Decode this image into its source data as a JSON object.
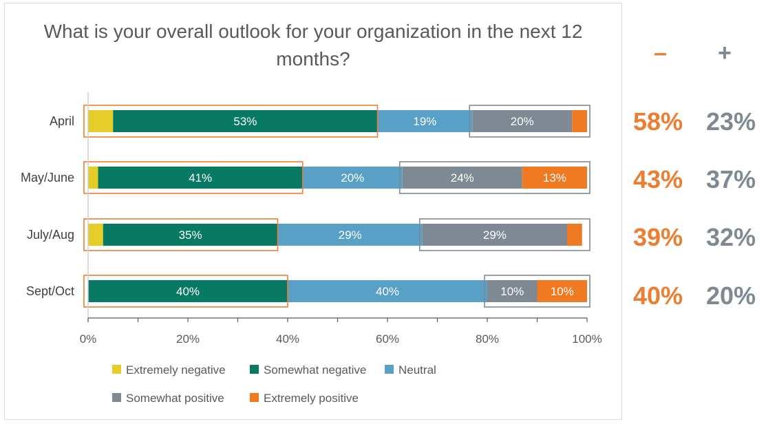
{
  "chart_data": {
    "type": "bar",
    "orientation": "horizontal",
    "stacked": true,
    "title": "What is your overall outlook for your organization in the next 12 months?",
    "categories": [
      "April",
      "May/June",
      "July/Aug",
      "Sept/Oct"
    ],
    "series": [
      {
        "name": "Extremely negative",
        "color": "#e6cd27",
        "values": [
          5,
          2,
          3,
          0
        ]
      },
      {
        "name": "Somewhat negative",
        "color": "#087a63",
        "values": [
          53,
          41,
          35,
          40
        ]
      },
      {
        "name": "Neutral",
        "color": "#58a0c6",
        "values": [
          19,
          20,
          29,
          40
        ]
      },
      {
        "name": "Somewhat positive",
        "color": "#7f8993",
        "values": [
          20,
          24,
          29,
          10
        ]
      },
      {
        "name": "Extremely positive",
        "color": "#f07a22",
        "values": [
          3,
          13,
          3,
          10
        ]
      }
    ],
    "data_labels": [
      [
        "",
        "53%",
        "19%",
        "20%",
        ""
      ],
      [
        "",
        "41%",
        "20%",
        "24%",
        "13%"
      ],
      [
        "",
        "35%",
        "29%",
        "29%",
        ""
      ],
      [
        "",
        "40%",
        "40%",
        "10%",
        "10%"
      ]
    ],
    "xlim": [
      0,
      100
    ],
    "xticks": [
      "0%",
      "20%",
      "40%",
      "60%",
      "80%",
      "100%"
    ],
    "grid": false,
    "legend_position": "bottom"
  },
  "summary": {
    "negative_symbol": "–",
    "positive_symbol": "+",
    "negative_color": "#ed7d31",
    "positive_color": "#7f8993",
    "rows": [
      {
        "negative": "58%",
        "positive": "23%"
      },
      {
        "negative": "43%",
        "positive": "37%"
      },
      {
        "negative": "39%",
        "positive": "32%"
      },
      {
        "negative": "40%",
        "positive": "20%"
      }
    ]
  }
}
